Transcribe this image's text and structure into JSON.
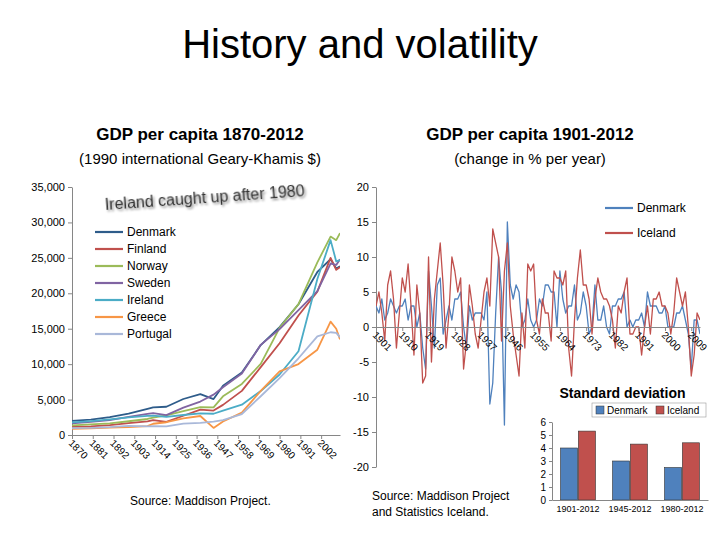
{
  "title": "History and volatility",
  "chart_data": [
    {
      "type": "line",
      "title": "GDP per capita 1870-2012",
      "subtitle": "(1990 international Geary-Khamis $)",
      "annotation": "Ireland caught up after 1980",
      "source": "Source: Maddison Project.",
      "legend": "top-left",
      "x": [
        1870,
        1880,
        1890,
        1900,
        1910,
        1913,
        1920,
        1929,
        1938,
        1945,
        1950,
        1960,
        1970,
        1980,
        1990,
        2000,
        2007,
        2010,
        2012
      ],
      "xlim": [
        1870,
        2012
      ],
      "xticks": [
        1870,
        1881,
        1892,
        1903,
        1914,
        1925,
        1936,
        1947,
        1958,
        1969,
        1980,
        1991,
        2002
      ],
      "ylim": [
        0,
        35000
      ],
      "yticks": [
        0,
        {
          "value": 5000,
          "label": "5,000"
        },
        {
          "value": 10000,
          "label": "10,000"
        },
        {
          "value": 15000,
          "label": "15,000"
        },
        {
          "value": 20000,
          "label": "20,000"
        },
        {
          "value": 25000,
          "label": "25,000"
        },
        {
          "value": 30000,
          "label": "30,000"
        },
        {
          "value": 35000,
          "label": "35,000"
        }
      ],
      "series": [
        {
          "name": "Denmark",
          "color": "#2E5C8A",
          "values": [
            2000,
            2180,
            2520,
            3020,
            3700,
            3910,
            3990,
            5080,
            5760,
            5070,
            6940,
            8810,
            12690,
            15230,
            18450,
            23010,
            24800,
            23500,
            23800
          ]
        },
        {
          "name": "Finland",
          "color": "#C0504D",
          "values": [
            1140,
            1230,
            1380,
            1670,
            1910,
            2110,
            1850,
            2720,
            3590,
            3450,
            4250,
            6230,
            9580,
            12950,
            16870,
            20240,
            25000,
            23300,
            23700
          ]
        },
        {
          "name": "Norway",
          "color": "#9BBB59",
          "values": [
            1360,
            1490,
            1640,
            1940,
            2260,
            2450,
            2780,
            3380,
            3930,
            3900,
            5460,
            7210,
            10030,
            15130,
            18470,
            24360,
            28000,
            27500,
            28500
          ]
        },
        {
          "name": "Sweden",
          "color": "#8064A2",
          "values": [
            1660,
            1850,
            2090,
            2560,
            2980,
            3100,
            2800,
            3870,
            4720,
            5700,
            6740,
            8690,
            12720,
            14940,
            17610,
            20320,
            24200,
            24000,
            24800
          ]
        },
        {
          "name": "Ireland",
          "color": "#4BACC6",
          "values": [
            1780,
            1950,
            2200,
            2500,
            2700,
            2740,
            2550,
            2820,
            3050,
            3000,
            3450,
            4280,
            6200,
            8540,
            11820,
            22010,
            27500,
            24500,
            24700
          ]
        },
        {
          "name": "Greece",
          "color": "#F79646",
          "values": [
            880,
            950,
            1050,
            1110,
            1250,
            1590,
            1800,
            2340,
            2680,
            1000,
            1910,
            3150,
            6210,
            8970,
            10010,
            12040,
            16000,
            15000,
            13500
          ]
        },
        {
          "name": "Portugal",
          "color": "#A9B8D9",
          "values": [
            980,
            1000,
            1100,
            1300,
            1230,
            1250,
            1230,
            1610,
            1700,
            1900,
            2090,
            2960,
            5470,
            8040,
            10830,
            13920,
            14500,
            14400,
            13800
          ]
        }
      ]
    },
    {
      "type": "line",
      "title": "GDP per capita 1901-2012",
      "subtitle": "(change in % per year)",
      "source": [
        "Source: Maddison Project",
        "and Statistics Iceland."
      ],
      "legend": "top-right",
      "x": [
        1901,
        1902,
        1903,
        1904,
        1905,
        1906,
        1907,
        1908,
        1909,
        1910,
        1911,
        1912,
        1913,
        1914,
        1915,
        1916,
        1917,
        1918,
        1919,
        1920,
        1921,
        1922,
        1923,
        1924,
        1925,
        1926,
        1927,
        1928,
        1929,
        1930,
        1931,
        1932,
        1933,
        1934,
        1935,
        1936,
        1937,
        1938,
        1939,
        1940,
        1941,
        1942,
        1943,
        1944,
        1945,
        1946,
        1947,
        1948,
        1949,
        1950,
        1951,
        1952,
        1953,
        1954,
        1955,
        1956,
        1957,
        1958,
        1959,
        1960,
        1961,
        1962,
        1963,
        1964,
        1965,
        1966,
        1967,
        1968,
        1969,
        1970,
        1971,
        1972,
        1973,
        1974,
        1975,
        1976,
        1977,
        1978,
        1979,
        1980,
        1981,
        1982,
        1983,
        1984,
        1985,
        1986,
        1987,
        1988,
        1989,
        1990,
        1991,
        1992,
        1993,
        1994,
        1995,
        1996,
        1997,
        1998,
        1999,
        2000,
        2001,
        2002,
        2003,
        2004,
        2005,
        2006,
        2007,
        2008,
        2009,
        2010,
        2011,
        2012
      ],
      "xlim": [
        1901,
        2012
      ],
      "xticks": [
        1901,
        1910,
        1919,
        1928,
        1937,
        1946,
        1955,
        1964,
        1973,
        1982,
        1991,
        2000,
        2009
      ],
      "ylim": [
        -20,
        20
      ],
      "yticks": [
        -20,
        -15,
        -10,
        -5,
        0,
        5,
        10,
        15,
        20
      ],
      "series": [
        {
          "name": "Denmark",
          "color": "#4F81BD",
          "values": [
            3,
            2,
            4,
            1,
            2,
            4,
            3,
            2,
            3,
            3,
            4,
            1,
            3,
            3,
            0,
            2,
            -3,
            -6,
            8,
            3,
            -3,
            6,
            7,
            -1,
            1,
            3,
            1,
            4,
            4,
            5,
            0,
            -3,
            3,
            1,
            2,
            2,
            2,
            1,
            5,
            -11,
            -8,
            2,
            10,
            5,
            -14,
            15,
            6,
            4,
            6,
            5,
            0,
            1,
            4,
            1,
            0,
            1,
            4,
            3,
            6,
            6,
            5,
            5,
            0,
            8,
            4,
            2,
            3,
            3,
            6,
            1,
            2,
            5,
            3,
            -1,
            0,
            6,
            1,
            1,
            3,
            0,
            -1,
            3,
            3,
            4,
            4,
            5,
            0,
            1,
            0,
            1,
            1,
            2,
            0,
            5,
            3,
            3,
            3,
            2,
            2,
            3,
            0,
            0,
            0,
            2,
            2,
            3,
            1,
            -1,
            -6,
            1,
            1,
            -1
          ]
        },
        {
          "name": "Iceland",
          "color": "#C0504D",
          "values": [
            3,
            5,
            2,
            -2,
            6,
            8,
            4,
            -3,
            2,
            7,
            5,
            9,
            3,
            -4,
            6,
            2,
            -8,
            -7,
            10,
            -5,
            4,
            8,
            12,
            6,
            -3,
            2,
            10,
            8,
            5,
            7,
            -6,
            -2,
            6,
            3,
            -1,
            -3,
            1,
            5,
            7,
            3,
            14,
            12,
            10,
            -2,
            8,
            12,
            3,
            -1,
            -4,
            -7,
            2,
            -3,
            9,
            8,
            9,
            1,
            -1,
            4,
            2,
            2,
            -2,
            8,
            7,
            7,
            6,
            8,
            -3,
            -7,
            1,
            7,
            11,
            6,
            6,
            4,
            -1,
            4,
            7,
            5,
            4,
            4,
            3,
            1,
            -3,
            3,
            2,
            5,
            7,
            -1,
            -1,
            0,
            0,
            -4,
            0,
            3,
            -1,
            4,
            4,
            5,
            3,
            3,
            2,
            -1,
            2,
            7,
            5,
            3,
            5,
            0,
            -7,
            -4,
            2,
            1
          ]
        }
      ]
    },
    {
      "type": "bar",
      "title": "Standard deviation",
      "legend": "top-right",
      "categories": [
        "1901-2012",
        "1945-2012",
        "1980-2012"
      ],
      "ylim": [
        0,
        6
      ],
      "yticks": [
        0,
        1,
        2,
        3,
        4,
        5,
        6
      ],
      "series": [
        {
          "name": "Denmark",
          "color": "#4F81BD",
          "values": [
            4.0,
            3.0,
            2.5
          ]
        },
        {
          "name": "Iceland",
          "color": "#C0504D",
          "values": [
            5.3,
            4.3,
            4.4
          ]
        }
      ]
    }
  ]
}
